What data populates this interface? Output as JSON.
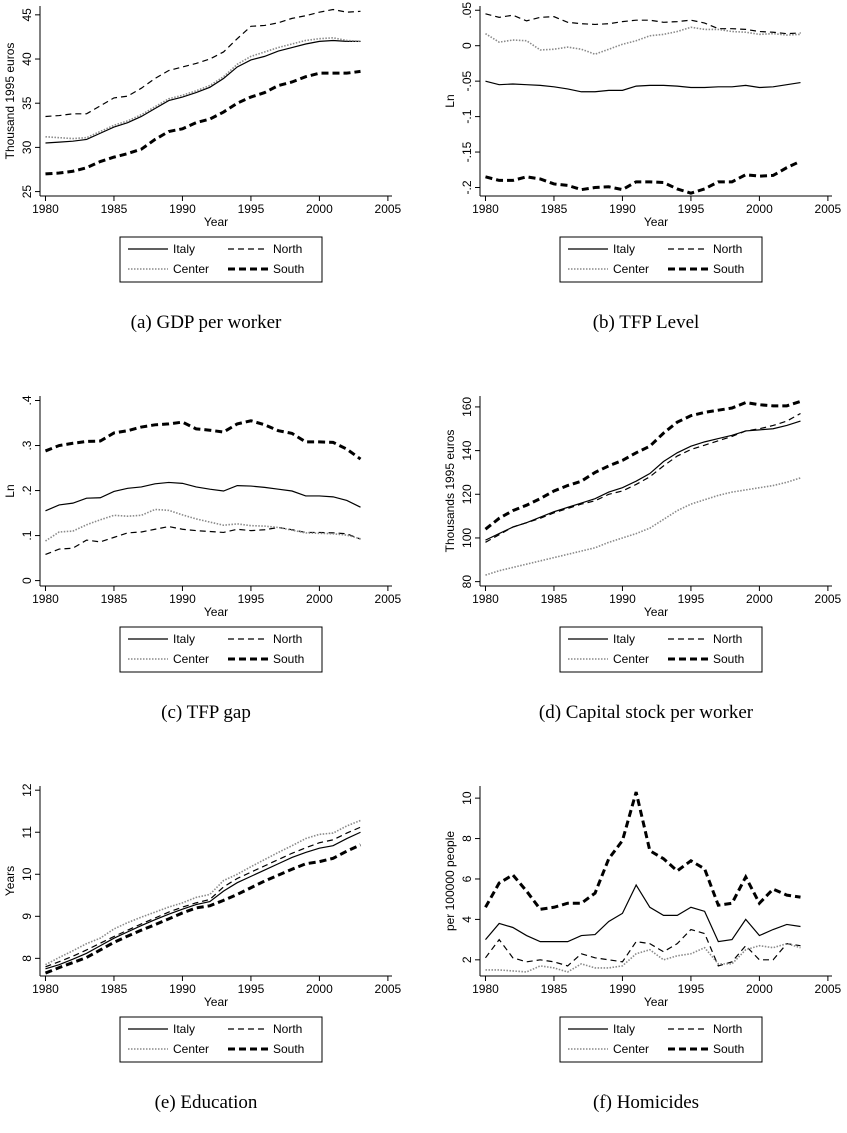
{
  "chart_data": [
    {
      "type": "line",
      "caption": "(a) GDP per worker",
      "xlabel": "Year",
      "ylabel": "Thousand 1995 euros",
      "x": [
        1980,
        1981,
        1982,
        1983,
        1984,
        1985,
        1986,
        1987,
        1988,
        1989,
        1990,
        1991,
        1992,
        1993,
        1994,
        1995,
        1996,
        1997,
        1998,
        1999,
        2000,
        2001,
        2002,
        2003
      ],
      "xlim": [
        1979.6,
        2005.3
      ],
      "xticks": [
        1980,
        1985,
        1990,
        1995,
        2000,
        2005
      ],
      "ylim": [
        24.5,
        46
      ],
      "yticks": [
        25,
        30,
        35,
        40,
        45
      ],
      "series": [
        {
          "name": "Italy",
          "color": "#000000",
          "dash": "none",
          "width": 1.2,
          "values": [
            30.5,
            30.6,
            30.7,
            30.9,
            31.6,
            32.3,
            32.8,
            33.5,
            34.4,
            35.3,
            35.7,
            36.2,
            36.8,
            37.8,
            39.1,
            39.9,
            40.3,
            40.9,
            41.3,
            41.7,
            42.0,
            42.1,
            42.0,
            42.0
          ]
        },
        {
          "name": "North",
          "color": "#000000",
          "dash": "6 4",
          "width": 1.2,
          "values": [
            33.5,
            33.6,
            33.8,
            33.8,
            34.7,
            35.6,
            35.8,
            36.7,
            37.8,
            38.7,
            39.1,
            39.5,
            40.0,
            40.8,
            42.3,
            43.7,
            43.8,
            44.1,
            44.6,
            44.9,
            45.3,
            45.6,
            45.3,
            45.4
          ]
        },
        {
          "name": "Center",
          "color": "#8a8a8a",
          "dash": "1.5 1.5",
          "width": 1.6,
          "values": [
            31.2,
            31.1,
            31.0,
            31.1,
            31.8,
            32.5,
            33.0,
            33.7,
            34.6,
            35.5,
            35.9,
            36.4,
            37.0,
            38.0,
            39.4,
            40.3,
            40.8,
            41.3,
            41.7,
            42.1,
            42.3,
            42.4,
            42.1,
            42.0
          ]
        },
        {
          "name": "South",
          "color": "#000000",
          "dash": "7 4",
          "width": 3,
          "values": [
            27.0,
            27.1,
            27.3,
            27.7,
            28.4,
            28.9,
            29.3,
            29.8,
            30.9,
            31.8,
            32.1,
            32.8,
            33.2,
            34.0,
            35.0,
            35.7,
            36.2,
            37.0,
            37.4,
            38.0,
            38.4,
            38.4,
            38.4,
            38.6
          ]
        }
      ]
    },
    {
      "type": "line",
      "caption": "(b) TFP Level",
      "xlabel": "Year",
      "ylabel": "Ln",
      "x": [
        1980,
        1981,
        1982,
        1983,
        1984,
        1985,
        1986,
        1987,
        1988,
        1989,
        1990,
        1991,
        1992,
        1993,
        1994,
        1995,
        1996,
        1997,
        1998,
        1999,
        2000,
        2001,
        2002,
        2003
      ],
      "xlim": [
        1979.6,
        2005.3
      ],
      "xticks": [
        1980,
        1985,
        1990,
        1995,
        2000,
        2005
      ],
      "ylim": [
        -0.212,
        0.056
      ],
      "yticks": [
        {
          "value": -0.2,
          "label": "-.2"
        },
        {
          "value": -0.15,
          "label": "-.15"
        },
        {
          "value": -0.1,
          "label": "-.1"
        },
        {
          "value": -0.05,
          "label": "-.05"
        },
        0,
        {
          "value": 0.05,
          "label": ".05"
        }
      ],
      "series": [
        {
          "name": "Italy",
          "color": "#000000",
          "dash": "none",
          "width": 1.2,
          "values": [
            -0.05,
            -0.055,
            -0.054,
            -0.055,
            -0.056,
            -0.058,
            -0.061,
            -0.065,
            -0.065,
            -0.063,
            -0.063,
            -0.057,
            -0.056,
            -0.056,
            -0.057,
            -0.059,
            -0.059,
            -0.058,
            -0.058,
            -0.056,
            -0.059,
            -0.058,
            -0.055,
            -0.052
          ]
        },
        {
          "name": "North",
          "color": "#000000",
          "dash": "6 4",
          "width": 1.2,
          "values": [
            0.045,
            0.04,
            0.043,
            0.035,
            0.04,
            0.041,
            0.033,
            0.031,
            0.03,
            0.031,
            0.034,
            0.036,
            0.036,
            0.033,
            0.034,
            0.036,
            0.032,
            0.024,
            0.024,
            0.023,
            0.02,
            0.019,
            0.017,
            0.018
          ]
        },
        {
          "name": "Center",
          "color": "#8a8a8a",
          "dash": "1.5 1.5",
          "width": 1.6,
          "values": [
            0.017,
            0.005,
            0.008,
            0.007,
            -0.006,
            -0.005,
            -0.002,
            -0.005,
            -0.012,
            -0.005,
            0.002,
            0.007,
            0.014,
            0.016,
            0.02,
            0.026,
            0.023,
            0.023,
            0.02,
            0.019,
            0.016,
            0.017,
            0.015,
            0.016
          ]
        },
        {
          "name": "South",
          "color": "#000000",
          "dash": "7 4",
          "width": 3,
          "values": [
            -0.185,
            -0.19,
            -0.19,
            -0.185,
            -0.188,
            -0.195,
            -0.197,
            -0.203,
            -0.2,
            -0.199,
            -0.203,
            -0.192,
            -0.192,
            -0.193,
            -0.202,
            -0.208,
            -0.202,
            -0.192,
            -0.192,
            -0.182,
            -0.184,
            -0.183,
            -0.172,
            -0.163
          ]
        }
      ]
    },
    {
      "type": "line",
      "caption": "(c) TFP gap",
      "xlabel": "Year",
      "ylabel": "Ln",
      "x": [
        1980,
        1981,
        1982,
        1983,
        1984,
        1985,
        1986,
        1987,
        1988,
        1989,
        1990,
        1991,
        1992,
        1993,
        1994,
        1995,
        1996,
        1997,
        1998,
        1999,
        2000,
        2001,
        2002,
        2003
      ],
      "xlim": [
        1979.6,
        2005.3
      ],
      "xticks": [
        1980,
        1985,
        1990,
        1995,
        2000,
        2005
      ],
      "ylim": [
        -0.012,
        0.41
      ],
      "yticks": [
        0,
        {
          "value": 0.1,
          "label": ".1"
        },
        {
          "value": 0.2,
          "label": ".2"
        },
        {
          "value": 0.3,
          "label": ".3"
        },
        {
          "value": 0.4,
          "label": ".4"
        }
      ],
      "series": [
        {
          "name": "Italy",
          "color": "#000000",
          "dash": "none",
          "width": 1.2,
          "values": [
            0.155,
            0.168,
            0.172,
            0.183,
            0.184,
            0.198,
            0.205,
            0.208,
            0.215,
            0.218,
            0.216,
            0.208,
            0.203,
            0.199,
            0.211,
            0.21,
            0.207,
            0.203,
            0.199,
            0.188,
            0.188,
            0.186,
            0.178,
            0.163
          ]
        },
        {
          "name": "North",
          "color": "#000000",
          "dash": "6 4",
          "width": 1.2,
          "values": [
            0.058,
            0.07,
            0.072,
            0.09,
            0.086,
            0.096,
            0.106,
            0.108,
            0.114,
            0.12,
            0.114,
            0.111,
            0.109,
            0.107,
            0.114,
            0.111,
            0.113,
            0.118,
            0.113,
            0.107,
            0.107,
            0.106,
            0.104,
            0.092
          ]
        },
        {
          "name": "Center",
          "color": "#8a8a8a",
          "dash": "1.5 1.5",
          "width": 1.6,
          "values": [
            0.088,
            0.108,
            0.11,
            0.124,
            0.135,
            0.145,
            0.143,
            0.145,
            0.158,
            0.156,
            0.146,
            0.137,
            0.13,
            0.123,
            0.126,
            0.122,
            0.121,
            0.118,
            0.112,
            0.106,
            0.105,
            0.104,
            0.101,
            0.093
          ]
        },
        {
          "name": "South",
          "color": "#000000",
          "dash": "7 4",
          "width": 3,
          "values": [
            0.288,
            0.3,
            0.305,
            0.309,
            0.31,
            0.328,
            0.333,
            0.341,
            0.346,
            0.348,
            0.352,
            0.337,
            0.334,
            0.33,
            0.348,
            0.355,
            0.346,
            0.333,
            0.327,
            0.308,
            0.308,
            0.307,
            0.292,
            0.27
          ]
        }
      ]
    },
    {
      "type": "line",
      "caption": "(d) Capital stock per worker",
      "xlabel": "Year",
      "ylabel": "Thousands 1995 euros",
      "x": [
        1980,
        1981,
        1982,
        1983,
        1984,
        1985,
        1986,
        1987,
        1988,
        1989,
        1990,
        1991,
        1992,
        1993,
        1994,
        1995,
        1996,
        1997,
        1998,
        1999,
        2000,
        2001,
        2002,
        2003
      ],
      "xlim": [
        1979.6,
        2005.3
      ],
      "xticks": [
        1980,
        1985,
        1990,
        1995,
        2000,
        2005
      ],
      "ylim": [
        78,
        165
      ],
      "yticks": [
        80,
        100,
        120,
        140,
        160
      ],
      "series": [
        {
          "name": "Italy",
          "color": "#000000",
          "dash": "none",
          "width": 1.2,
          "values": [
            99,
            102,
            105,
            107,
            109.5,
            112,
            114,
            116,
            118,
            121,
            123,
            126,
            129.5,
            135,
            139,
            142,
            144,
            145.5,
            147,
            149,
            149.5,
            150,
            151.5,
            153.5
          ]
        },
        {
          "name": "North",
          "color": "#000000",
          "dash": "6 4",
          "width": 1.2,
          "values": [
            98,
            101.5,
            105,
            107,
            109,
            111.5,
            113.5,
            115.5,
            117,
            120,
            121.5,
            124.5,
            128,
            133,
            137.5,
            140.5,
            142.5,
            144.5,
            146.5,
            149,
            150,
            151.5,
            153.5,
            157
          ]
        },
        {
          "name": "Center",
          "color": "#8a8a8a",
          "dash": "1.5 1.5",
          "width": 1.6,
          "values": [
            83,
            85,
            86.5,
            88,
            89.5,
            91,
            92.5,
            94,
            95.5,
            98,
            100,
            102,
            104.5,
            108.5,
            112.5,
            115.5,
            117.5,
            119.5,
            121,
            122,
            123,
            124,
            125.5,
            127.5
          ]
        },
        {
          "name": "South",
          "color": "#000000",
          "dash": "7 4",
          "width": 3,
          "values": [
            104,
            109,
            112.5,
            115,
            118,
            121.5,
            124,
            126,
            130,
            133,
            135.5,
            139,
            142,
            148,
            153,
            156,
            157.5,
            158.5,
            159.5,
            162,
            161,
            160.5,
            160.5,
            162.5
          ]
        }
      ]
    },
    {
      "type": "line",
      "caption": "(e) Education",
      "xlabel": "Year",
      "ylabel": "Years",
      "x": [
        1980,
        1981,
        1982,
        1983,
        1984,
        1985,
        1986,
        1987,
        1988,
        1989,
        1990,
        1991,
        1992,
        1993,
        1994,
        1995,
        1996,
        1997,
        1998,
        1999,
        2000,
        2001,
        2002,
        2003
      ],
      "xlim": [
        1979.6,
        2005.3
      ],
      "xticks": [
        1980,
        1985,
        1990,
        1995,
        2000,
        2005
      ],
      "ylim": [
        7.58,
        12.1
      ],
      "yticks": [
        8,
        9,
        10,
        11,
        12
      ],
      "series": [
        {
          "name": "Italy",
          "color": "#000000",
          "dash": "none",
          "width": 1.2,
          "values": [
            7.75,
            7.85,
            7.98,
            8.12,
            8.3,
            8.48,
            8.63,
            8.78,
            8.92,
            9.05,
            9.17,
            9.28,
            9.35,
            9.6,
            9.8,
            9.95,
            10.1,
            10.25,
            10.4,
            10.52,
            10.62,
            10.68,
            10.85,
            11.0
          ]
        },
        {
          "name": "North",
          "color": "#000000",
          "dash": "6 4",
          "width": 1.2,
          "values": [
            7.8,
            7.92,
            8.05,
            8.2,
            8.36,
            8.52,
            8.67,
            8.82,
            8.96,
            9.1,
            9.22,
            9.32,
            9.4,
            9.7,
            9.9,
            10.05,
            10.2,
            10.35,
            10.5,
            10.63,
            10.75,
            10.82,
            10.98,
            11.12
          ]
        },
        {
          "name": "Center",
          "color": "#8a8a8a",
          "dash": "1.5 1.5",
          "width": 1.6,
          "values": [
            7.85,
            8.02,
            8.18,
            8.35,
            8.48,
            8.7,
            8.85,
            8.98,
            9.1,
            9.22,
            9.32,
            9.45,
            9.52,
            9.85,
            10.0,
            10.18,
            10.35,
            10.52,
            10.68,
            10.85,
            10.95,
            10.98,
            11.15,
            11.28
          ]
        },
        {
          "name": "South",
          "color": "#000000",
          "dash": "7 4",
          "width": 3,
          "values": [
            7.65,
            7.78,
            7.9,
            8.02,
            8.2,
            8.38,
            8.53,
            8.67,
            8.8,
            8.94,
            9.08,
            9.2,
            9.25,
            9.38,
            9.52,
            9.68,
            9.84,
            9.98,
            10.12,
            10.25,
            10.3,
            10.38,
            10.55,
            10.7
          ]
        }
      ]
    },
    {
      "type": "line",
      "caption": "(f) Homicides",
      "xlabel": "Year",
      "ylabel": "per 100000 people",
      "x": [
        1980,
        1981,
        1982,
        1983,
        1984,
        1985,
        1986,
        1987,
        1988,
        1989,
        1990,
        1991,
        1992,
        1993,
        1994,
        1995,
        1996,
        1997,
        1998,
        1999,
        2000,
        2001,
        2002,
        2003
      ],
      "xlim": [
        1979.6,
        2005.3
      ],
      "xticks": [
        1980,
        1985,
        1990,
        1995,
        2000,
        2005
      ],
      "ylim": [
        1.2,
        10.6
      ],
      "yticks": [
        2,
        4,
        6,
        8,
        10
      ],
      "series": [
        {
          "name": "Italy",
          "color": "#000000",
          "dash": "none",
          "width": 1.2,
          "values": [
            3.0,
            3.8,
            3.6,
            3.2,
            2.9,
            2.9,
            2.9,
            3.2,
            3.25,
            3.9,
            4.3,
            5.7,
            4.6,
            4.2,
            4.2,
            4.6,
            4.4,
            2.9,
            3.0,
            4.0,
            3.2,
            3.5,
            3.75,
            3.65
          ]
        },
        {
          "name": "North",
          "color": "#000000",
          "dash": "6 4",
          "width": 1.2,
          "values": [
            2.1,
            3.0,
            2.1,
            1.9,
            2.0,
            1.9,
            1.7,
            2.3,
            2.1,
            2.0,
            1.9,
            2.9,
            2.8,
            2.4,
            2.8,
            3.5,
            3.3,
            1.7,
            1.9,
            2.7,
            2.0,
            2.0,
            2.8,
            2.7
          ]
        },
        {
          "name": "Center",
          "color": "#8a8a8a",
          "dash": "1.5 1.5",
          "width": 1.6,
          "values": [
            1.5,
            1.5,
            1.45,
            1.4,
            1.7,
            1.6,
            1.4,
            1.8,
            1.6,
            1.6,
            1.7,
            2.3,
            2.5,
            2.0,
            2.2,
            2.3,
            2.6,
            1.8,
            1.8,
            2.5,
            2.7,
            2.6,
            2.8,
            2.6
          ]
        },
        {
          "name": "South",
          "color": "#000000",
          "dash": "7 4",
          "width": 3,
          "values": [
            4.6,
            5.8,
            6.2,
            5.4,
            4.5,
            4.6,
            4.8,
            4.8,
            5.3,
            7.0,
            7.9,
            10.3,
            7.4,
            7.0,
            6.4,
            6.9,
            6.5,
            4.7,
            4.8,
            6.1,
            4.8,
            5.5,
            5.2,
            5.1
          ]
        }
      ]
    }
  ]
}
